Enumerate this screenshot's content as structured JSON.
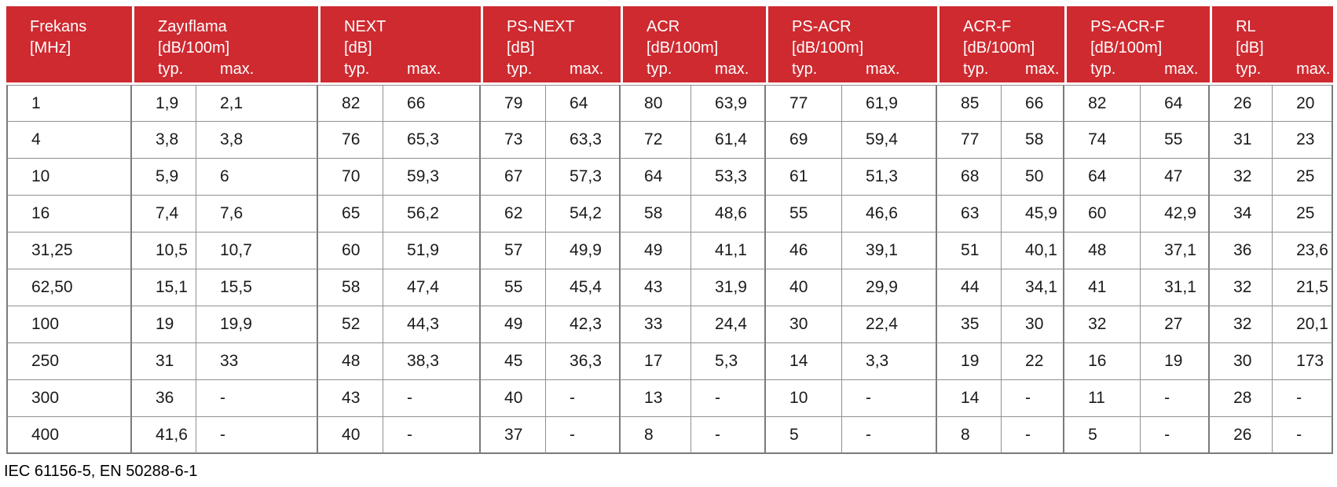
{
  "colors": {
    "header_bg": "#CE2A30",
    "header_text": "#FFFFFF",
    "grid_line": "#909090",
    "outer_line": "#7A7A7A",
    "cell_text": "#1B1B1B"
  },
  "table": {
    "groups": [
      {
        "key": "frekans",
        "label": "Frekans",
        "unit": "[MHz]",
        "subcols": []
      },
      {
        "key": "zayiflama",
        "label": "Zayıflama",
        "unit": "[dB/100m]",
        "subcols": [
          "typ.",
          "max."
        ]
      },
      {
        "key": "next",
        "label": "NEXT",
        "unit": "[dB]",
        "subcols": [
          "typ.",
          "max."
        ]
      },
      {
        "key": "ps-next",
        "label": "PS-NEXT",
        "unit": "[dB]",
        "subcols": [
          "typ.",
          "max."
        ]
      },
      {
        "key": "acr",
        "label": "ACR",
        "unit": "[dB/100m]",
        "subcols": [
          "typ.",
          "max."
        ]
      },
      {
        "key": "ps-acr",
        "label": "PS-ACR",
        "unit": "[dB/100m]",
        "subcols": [
          "typ.",
          "max."
        ]
      },
      {
        "key": "acr-f",
        "label": "ACR-F",
        "unit": "[dB/100m]",
        "subcols": [
          "typ.",
          "max."
        ]
      },
      {
        "key": "ps-acr-f",
        "label": "PS-ACR-F",
        "unit": "[dB/100m]",
        "subcols": [
          "typ.",
          "max."
        ]
      },
      {
        "key": "rl",
        "label": "RL",
        "unit": "[dB]",
        "subcols": [
          "typ.",
          "max."
        ]
      }
    ],
    "rows": [
      [
        "1",
        "1,9",
        "2,1",
        "82",
        "66",
        "79",
        "64",
        "80",
        "63,9",
        "77",
        "61,9",
        "85",
        "66",
        "82",
        "64",
        "26",
        "20"
      ],
      [
        "4",
        "3,8",
        "3,8",
        "76",
        "65,3",
        "73",
        "63,3",
        "72",
        "61,4",
        "69",
        "59,4",
        "77",
        "58",
        "74",
        "55",
        "31",
        "23"
      ],
      [
        "10",
        "5,9",
        "6",
        "70",
        "59,3",
        "67",
        "57,3",
        "64",
        "53,3",
        "61",
        "51,3",
        "68",
        "50",
        "64",
        "47",
        "32",
        "25"
      ],
      [
        "16",
        "7,4",
        "7,6",
        "65",
        "56,2",
        "62",
        "54,2",
        "58",
        "48,6",
        "55",
        "46,6",
        "63",
        "45,9",
        "60",
        "42,9",
        "34",
        "25"
      ],
      [
        "31,25",
        "10,5",
        "10,7",
        "60",
        "51,9",
        "57",
        "49,9",
        "49",
        "41,1",
        "46",
        "39,1",
        "51",
        "40,1",
        "48",
        "37,1",
        "36",
        "23,6"
      ],
      [
        "62,50",
        "15,1",
        "15,5",
        "58",
        "47,4",
        "55",
        "45,4",
        "43",
        "31,9",
        "40",
        "29,9",
        "44",
        "34,1",
        "41",
        "31,1",
        "32",
        "21,5"
      ],
      [
        "100",
        "19",
        "19,9",
        "52",
        "44,3",
        "49",
        "42,3",
        "33",
        "24,4",
        "30",
        "22,4",
        "35",
        "30",
        "32",
        "27",
        "32",
        "20,1"
      ],
      [
        "250",
        "31",
        "33",
        "48",
        "38,3",
        "45",
        "36,3",
        "17",
        "5,3",
        "14",
        "3,3",
        "19",
        "22",
        "16",
        "19",
        "30",
        "173"
      ],
      [
        "300",
        "36",
        "-",
        "43",
        "-",
        "40",
        "-",
        "13",
        "-",
        "10",
        "-",
        "14",
        "-",
        "11",
        "-",
        "28",
        "-"
      ],
      [
        "400",
        "41,6",
        "-",
        "40",
        "-",
        "37",
        "-",
        "8",
        "-",
        "5",
        "-",
        "8",
        "-",
        "5",
        "-",
        "26",
        "-"
      ]
    ]
  },
  "footer_note": "IEC 61156-5, EN 50288-6-1"
}
